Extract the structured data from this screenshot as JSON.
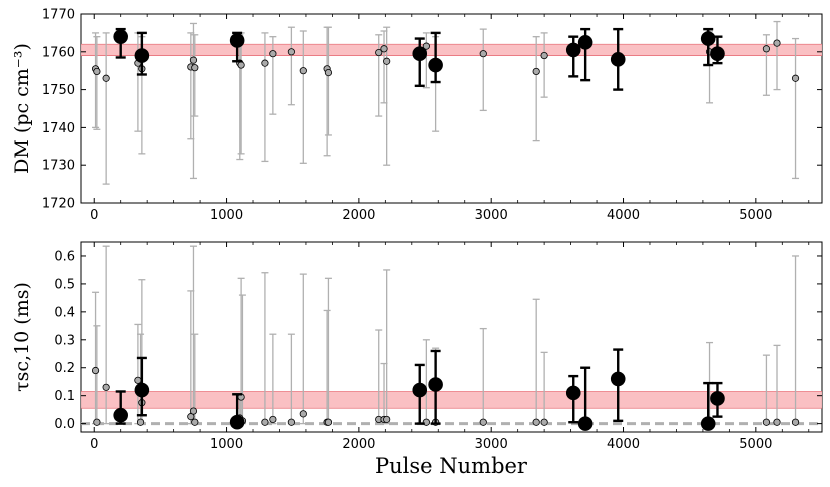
{
  "xlabel": "Pulse Number",
  "colors": {
    "band_fill": "#f9b9bd",
    "band_edge": "#e8737b",
    "gray_marker": "#aaaaaa",
    "gray_errorbar": "#b0b0b0",
    "black_marker": "#000000",
    "zero_line": "#b0b0b0"
  },
  "chart_data": [
    {
      "type": "scatter",
      "panel": "top",
      "ylabel": "DM (pc cm⁻³)",
      "xlim": [
        -100,
        5500
      ],
      "ylim": [
        1720,
        1770
      ],
      "xticks": [
        0,
        1000,
        2000,
        3000,
        4000,
        5000
      ],
      "yticks": [
        1720,
        1730,
        1740,
        1750,
        1760,
        1770
      ],
      "band": [
        1759,
        1762
      ],
      "series": [
        {
          "style": "gray",
          "points": [
            {
              "x": 10,
              "y": 1755.5,
              "lo": 1740,
              "hi": 1765
            },
            {
              "x": 20,
              "y": 1754.8,
              "lo": 1739.5,
              "hi": 1764
            },
            {
              "x": 90,
              "y": 1753,
              "lo": 1725,
              "hi": 1765
            },
            {
              "x": 330,
              "y": 1757,
              "lo": 1739,
              "hi": 1765
            },
            {
              "x": 360,
              "y": 1755.5,
              "lo": 1733,
              "hi": 1764
            },
            {
              "x": 730,
              "y": 1756,
              "lo": 1737,
              "hi": 1765
            },
            {
              "x": 750,
              "y": 1757.8,
              "lo": 1726.5,
              "hi": 1767.5
            },
            {
              "x": 760,
              "y": 1755.8,
              "lo": 1743,
              "hi": 1764.5
            },
            {
              "x": 1100,
              "y": 1757,
              "lo": 1731.5,
              "hi": 1764.5
            },
            {
              "x": 1110,
              "y": 1756.5,
              "lo": 1733,
              "hi": 1765
            },
            {
              "x": 1290,
              "y": 1757,
              "lo": 1731,
              "hi": 1765
            },
            {
              "x": 1350,
              "y": 1759.5,
              "lo": 1743.5,
              "hi": 1764
            },
            {
              "x": 1490,
              "y": 1760,
              "lo": 1746,
              "hi": 1766.5
            },
            {
              "x": 1580,
              "y": 1755,
              "lo": 1730.5,
              "hi": 1765.5
            },
            {
              "x": 1760,
              "y": 1755.5,
              "lo": 1732.5,
              "hi": 1766.5
            },
            {
              "x": 1770,
              "y": 1754.5,
              "lo": 1738,
              "hi": 1766.5
            },
            {
              "x": 2150,
              "y": 1759.8,
              "lo": 1743,
              "hi": 1764.5
            },
            {
              "x": 2190,
              "y": 1760.8,
              "lo": 1746.5,
              "hi": 1765.5
            },
            {
              "x": 2210,
              "y": 1757.5,
              "lo": 1730,
              "hi": 1766.5
            },
            {
              "x": 2510,
              "y": 1761.5,
              "lo": 1750.5,
              "hi": 1765
            },
            {
              "x": 2580,
              "y": 1755.5,
              "lo": 1739,
              "hi": 1764
            },
            {
              "x": 2940,
              "y": 1759.5,
              "lo": 1744.5,
              "hi": 1766
            },
            {
              "x": 3340,
              "y": 1754.8,
              "lo": 1736.5,
              "hi": 1764
            },
            {
              "x": 3400,
              "y": 1759,
              "lo": 1748,
              "hi": 1765
            },
            {
              "x": 4650,
              "y": 1760,
              "lo": 1746.5,
              "hi": 1765.5
            },
            {
              "x": 5080,
              "y": 1760.8,
              "lo": 1748.5,
              "hi": 1764.5
            },
            {
              "x": 5160,
              "y": 1762.3,
              "lo": 1750,
              "hi": 1768
            },
            {
              "x": 5300,
              "y": 1753,
              "lo": 1726.5,
              "hi": 1763.5
            }
          ]
        },
        {
          "style": "black",
          "points": [
            {
              "x": 200,
              "y": 1764,
              "lo": 1758.5,
              "hi": 1766
            },
            {
              "x": 360,
              "y": 1759,
              "lo": 1754,
              "hi": 1765
            },
            {
              "x": 1080,
              "y": 1763,
              "lo": 1757.5,
              "hi": 1765
            },
            {
              "x": 2460,
              "y": 1759.5,
              "lo": 1751,
              "hi": 1763.5
            },
            {
              "x": 2580,
              "y": 1756.5,
              "lo": 1752,
              "hi": 1765
            },
            {
              "x": 3620,
              "y": 1760.5,
              "lo": 1753.5,
              "hi": 1764
            },
            {
              "x": 3710,
              "y": 1762.5,
              "lo": 1752.5,
              "hi": 1766
            },
            {
              "x": 3960,
              "y": 1758,
              "lo": 1750,
              "hi": 1766
            },
            {
              "x": 4640,
              "y": 1763.5,
              "lo": 1756.5,
              "hi": 1766
            },
            {
              "x": 4710,
              "y": 1759.5,
              "lo": 1757,
              "hi": 1764
            }
          ]
        }
      ]
    },
    {
      "type": "scatter",
      "panel": "bottom",
      "ylabel": "τsc,10 (ms)",
      "xlim": [
        -100,
        5500
      ],
      "ylim": [
        -0.03,
        0.65
      ],
      "xticks": [
        0,
        1000,
        2000,
        3000,
        4000,
        5000
      ],
      "yticks": [
        0.0,
        0.1,
        0.2,
        0.3,
        0.4,
        0.5,
        0.6
      ],
      "ytick_labels": [
        "0.0",
        "0.1",
        "0.2",
        "0.3",
        "0.4",
        "0.5",
        "0.6"
      ],
      "band": [
        0.055,
        0.115
      ],
      "zero_line": 0,
      "series": [
        {
          "style": "gray",
          "points": [
            {
              "x": 10,
              "y": 0.19,
              "lo": 0.0,
              "hi": 0.47
            },
            {
              "x": 20,
              "y": 0.005,
              "lo": 0.0,
              "hi": 0.35
            },
            {
              "x": 90,
              "y": 0.13,
              "lo": 0.0,
              "hi": 0.635
            },
            {
              "x": 330,
              "y": 0.155,
              "lo": 0.0,
              "hi": 0.355
            },
            {
              "x": 350,
              "y": 0.005,
              "lo": 0.0,
              "hi": 0.32
            },
            {
              "x": 360,
              "y": 0.075,
              "lo": 0.0,
              "hi": 0.515
            },
            {
              "x": 730,
              "y": 0.025,
              "lo": 0.0,
              "hi": 0.475
            },
            {
              "x": 750,
              "y": 0.045,
              "lo": 0.0,
              "hi": 0.635
            },
            {
              "x": 760,
              "y": 0.005,
              "lo": 0.0,
              "hi": 0.32
            },
            {
              "x": 1100,
              "y": 0.02,
              "lo": 0.0,
              "hi": 0.095
            },
            {
              "x": 1110,
              "y": 0.095,
              "lo": 0.0,
              "hi": 0.52
            },
            {
              "x": 1120,
              "y": 0.01,
              "lo": 0.0,
              "hi": 0.46
            },
            {
              "x": 1290,
              "y": 0.005,
              "lo": 0.0,
              "hi": 0.54
            },
            {
              "x": 1350,
              "y": 0.015,
              "lo": 0.0,
              "hi": 0.32
            },
            {
              "x": 1490,
              "y": 0.005,
              "lo": 0.0,
              "hi": 0.32
            },
            {
              "x": 1580,
              "y": 0.035,
              "lo": 0.0,
              "hi": 0.535
            },
            {
              "x": 1760,
              "y": 0.005,
              "lo": 0.0,
              "hi": 0.405
            },
            {
              "x": 1770,
              "y": 0.005,
              "lo": 0.0,
              "hi": 0.52
            },
            {
              "x": 2150,
              "y": 0.015,
              "lo": 0.0,
              "hi": 0.335
            },
            {
              "x": 2190,
              "y": 0.015,
              "lo": 0.0,
              "hi": 0.215
            },
            {
              "x": 2210,
              "y": 0.015,
              "lo": 0.0,
              "hi": 0.55
            },
            {
              "x": 2510,
              "y": 0.005,
              "lo": 0.0,
              "hi": 0.3
            },
            {
              "x": 2580,
              "y": 0.005,
              "lo": 0.0,
              "hi": 0.27
            },
            {
              "x": 2940,
              "y": 0.005,
              "lo": 0.0,
              "hi": 0.34
            },
            {
              "x": 3340,
              "y": 0.005,
              "lo": 0.0,
              "hi": 0.445
            },
            {
              "x": 3400,
              "y": 0.005,
              "lo": 0.0,
              "hi": 0.255
            },
            {
              "x": 4650,
              "y": 0.005,
              "lo": 0.0,
              "hi": 0.29
            },
            {
              "x": 5080,
              "y": 0.005,
              "lo": 0.0,
              "hi": 0.245
            },
            {
              "x": 5160,
              "y": 0.005,
              "lo": 0.0,
              "hi": 0.28
            },
            {
              "x": 5300,
              "y": 0.005,
              "lo": 0.0,
              "hi": 0.6
            }
          ]
        },
        {
          "style": "black",
          "points": [
            {
              "x": 200,
              "y": 0.03,
              "lo": 0.0,
              "hi": 0.115
            },
            {
              "x": 360,
              "y": 0.12,
              "lo": 0.03,
              "hi": 0.235
            },
            {
              "x": 1080,
              "y": 0.005,
              "lo": 0.0,
              "hi": 0.105
            },
            {
              "x": 2460,
              "y": 0.12,
              "lo": 0.0,
              "hi": 0.21
            },
            {
              "x": 2580,
              "y": 0.14,
              "lo": 0.0,
              "hi": 0.26
            },
            {
              "x": 3620,
              "y": 0.11,
              "lo": 0.005,
              "hi": 0.17
            },
            {
              "x": 3710,
              "y": 0.0,
              "lo": 0.0,
              "hi": 0.2
            },
            {
              "x": 3960,
              "y": 0.16,
              "lo": 0.01,
              "hi": 0.265
            },
            {
              "x": 4640,
              "y": 0.0,
              "lo": 0.0,
              "hi": 0.145
            },
            {
              "x": 4710,
              "y": 0.09,
              "lo": 0.025,
              "hi": 0.145
            }
          ]
        }
      ]
    }
  ]
}
